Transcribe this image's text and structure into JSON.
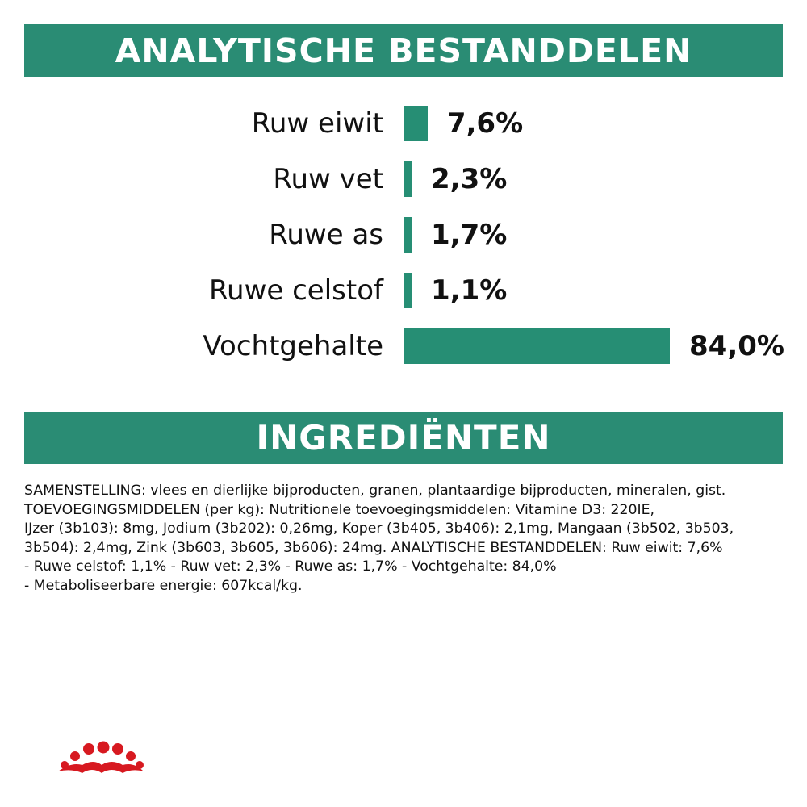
{
  "colors": {
    "accent": "#2A8C74",
    "bar": "#268E74",
    "text": "#111111",
    "brand_red": "#D71920"
  },
  "sections": {
    "analysis_title": "ANALYTISCHE BESTANDDELEN",
    "ingredients_title": "INGREDIËNTEN"
  },
  "chart_data": {
    "type": "bar",
    "orientation": "horizontal",
    "categories": [
      "Ruw eiwit",
      "Ruw vet",
      "Ruwe as",
      "Ruwe celstof",
      "Vochtgehalte"
    ],
    "values": [
      7.6,
      2.3,
      1.7,
      1.1,
      84.0
    ],
    "value_labels": [
      "7,6%",
      "2,3%",
      "1,7%",
      "1,1%",
      "84,0%"
    ],
    "xlim": [
      0,
      84.0
    ],
    "title": "",
    "xlabel": "",
    "ylabel": "",
    "grid": false,
    "legend": "none"
  },
  "ingredients": {
    "lines": [
      "SAMENSTELLING: vlees en dierlijke bijproducten, granen, plantaardige bijproducten, mineralen, gist.",
      "TOEVOEGINGSMIDDELEN (per kg): Nutritionele toevoegingsmiddelen: Vitamine D3: 220IE,",
      "IJzer (3b103): 8mg, Jodium (3b202): 0,26mg, Koper (3b405, 3b406): 2,1mg, Mangaan (3b502, 3b503,",
      "3b504): 2,4mg, Zink (3b603, 3b605, 3b606): 24mg. ANALYTISCHE BESTANDDELEN: Ruw eiwit: 7,6%",
      "- Ruwe celstof: 1,1% - Ruw vet: 2,3% - Ruwe as: 1,7% - Vochtgehalte: 84,0%",
      "- Metaboliseerbare energie: 607kcal/kg."
    ]
  },
  "logo": {
    "icon": "royal-canin-crown-icon"
  }
}
